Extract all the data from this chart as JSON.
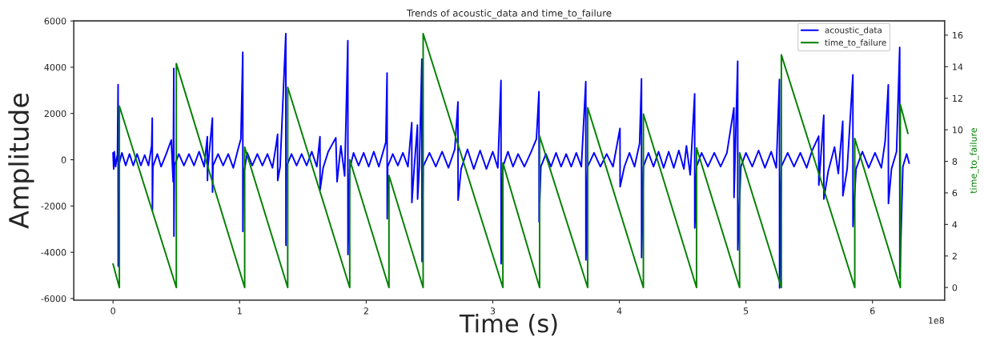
{
  "chart_data": {
    "type": "line",
    "title": "Trends of acoustic_data and time_to_failure",
    "xlabel": "Time (s)",
    "ylabel": "Amplitude",
    "y2label": "time_to_failure",
    "annotations": [
      "1e8"
    ],
    "xlim": [
      -0.31,
      6.57
    ],
    "xticks": [
      0,
      1,
      2,
      3,
      4,
      5,
      6
    ],
    "ylim": [
      -6070,
      6000
    ],
    "yticks": [
      -6000,
      -4000,
      -2000,
      0,
      2000,
      4000,
      6000
    ],
    "y2lim": [
      -0.8,
      16.9
    ],
    "y2ticks": [
      0,
      2,
      4,
      6,
      8,
      10,
      12,
      14,
      16
    ],
    "legend": "top right",
    "grid": false,
    "series": [
      {
        "name": "acoustic_data",
        "color": "#0000ff",
        "x": [
          0.0,
          0.005,
          0.01,
          0.02,
          0.035,
          0.04,
          0.041,
          0.045,
          0.07,
          0.1,
          0.13,
          0.16,
          0.19,
          0.22,
          0.25,
          0.28,
          0.305,
          0.31,
          0.311,
          0.315,
          0.35,
          0.38,
          0.42,
          0.46,
          0.475,
          0.48,
          0.481,
          0.485,
          0.52,
          0.56,
          0.6,
          0.64,
          0.68,
          0.72,
          0.745,
          0.746,
          0.75,
          0.785,
          0.786,
          0.79,
          0.83,
          0.87,
          0.91,
          0.95,
          0.99,
          1.01,
          1.025,
          1.026,
          1.03,
          1.06,
          1.1,
          1.14,
          1.18,
          1.22,
          1.26,
          1.29,
          1.3,
          1.301,
          1.32,
          1.365,
          1.366,
          1.37,
          1.41,
          1.45,
          1.49,
          1.53,
          1.57,
          1.61,
          1.635,
          1.636,
          1.66,
          1.7,
          1.76,
          1.77,
          1.8,
          1.83,
          1.855,
          1.856,
          1.87,
          1.9,
          1.94,
          1.98,
          2.02,
          2.06,
          2.1,
          2.155,
          2.165,
          2.166,
          2.17,
          2.21,
          2.25,
          2.29,
          2.33,
          2.36,
          2.361,
          2.38,
          2.405,
          2.406,
          2.42,
          2.44,
          2.441,
          2.45,
          2.5,
          2.55,
          2.6,
          2.65,
          2.7,
          2.725,
          2.726,
          2.75,
          2.8,
          2.85,
          2.9,
          2.95,
          3.0,
          3.04,
          3.065,
          3.066,
          3.08,
          3.12,
          3.16,
          3.2,
          3.25,
          3.3,
          3.345,
          3.365,
          3.366,
          3.38,
          3.42,
          3.46,
          3.5,
          3.54,
          3.58,
          3.62,
          3.66,
          3.7,
          3.735,
          3.736,
          3.75,
          3.8,
          3.85,
          3.9,
          3.95,
          4.005,
          4.006,
          4.04,
          4.08,
          4.12,
          4.16,
          4.175,
          4.176,
          4.19,
          4.23,
          4.27,
          4.31,
          4.35,
          4.39,
          4.43,
          4.47,
          4.51,
          4.53,
          4.56,
          4.595,
          4.596,
          4.61,
          4.65,
          4.7,
          4.75,
          4.8,
          4.85,
          4.905,
          4.906,
          4.935,
          4.936,
          4.96,
          5.0,
          5.05,
          5.1,
          5.15,
          5.2,
          5.24,
          5.265,
          5.266,
          5.28,
          5.33,
          5.38,
          5.43,
          5.48,
          5.52,
          5.575,
          5.576,
          5.615,
          5.616,
          5.65,
          5.7,
          5.73,
          5.765,
          5.766,
          5.8,
          5.845,
          5.846,
          5.87,
          5.92,
          5.97,
          6.02,
          6.07,
          6.1,
          6.125,
          6.126,
          6.15,
          6.19,
          6.215,
          6.216,
          6.24,
          6.27,
          6.29
        ],
        "values": [
          300,
          -400,
          350,
          -300,
          250,
          3250,
          -4600,
          -250,
          300,
          -250,
          250,
          -250,
          250,
          -250,
          200,
          -250,
          600,
          1800,
          -2200,
          -300,
          250,
          -300,
          250,
          850,
          -950,
          3950,
          -3300,
          -250,
          250,
          -250,
          250,
          -250,
          350,
          -300,
          1000,
          -900,
          -300,
          1800,
          -1400,
          -250,
          250,
          -250,
          250,
          -350,
          500,
          900,
          4650,
          -3100,
          -700,
          300,
          -250,
          250,
          -250,
          250,
          -350,
          700,
          1100,
          -900,
          -300,
          5450,
          -3700,
          -300,
          250,
          -250,
          250,
          -250,
          350,
          -300,
          1000,
          -1300,
          -350,
          350,
          950,
          -950,
          600,
          -700,
          5150,
          -4100,
          -400,
          300,
          -250,
          300,
          -300,
          350,
          -300,
          750,
          3750,
          -2550,
          -300,
          250,
          -250,
          300,
          -300,
          1600,
          -1850,
          -300,
          1500,
          -1700,
          -300,
          4350,
          -4400,
          -300,
          300,
          -300,
          350,
          -350,
          450,
          2500,
          -1750,
          -400,
          450,
          -400,
          400,
          -400,
          350,
          -350,
          3430,
          -4500,
          -300,
          350,
          -300,
          250,
          -300,
          300,
          900,
          2940,
          -2690,
          -300,
          250,
          -300,
          300,
          -300,
          250,
          -300,
          300,
          -300,
          3380,
          -4330,
          -300,
          300,
          -300,
          250,
          -300,
          1350,
          -1170,
          -300,
          300,
          -300,
          700,
          3500,
          -4230,
          -300,
          300,
          -300,
          350,
          -350,
          350,
          -350,
          400,
          -400,
          600,
          -650,
          2850,
          -2950,
          -300,
          300,
          -300,
          300,
          -300,
          300,
          2240,
          -1630,
          4260,
          -3900,
          -300,
          300,
          -300,
          400,
          -350,
          350,
          -350,
          3470,
          -5540,
          -300,
          300,
          -300,
          300,
          -350,
          350,
          1020,
          -1100,
          1920,
          -1700,
          -500,
          550,
          -600,
          1660,
          -1560,
          -400,
          3670,
          -2890,
          -400,
          350,
          -350,
          300,
          -350,
          800,
          3240,
          -1890,
          -400,
          350,
          4860,
          -5110,
          -300,
          250,
          -150
        ]
      },
      {
        "name": "time_to_failure",
        "color": "#008000",
        "axis": "y2",
        "x": [
          0.0,
          0.05,
          0.05,
          0.5,
          0.5,
          1.04,
          1.04,
          1.38,
          1.38,
          1.87,
          1.87,
          2.18,
          2.18,
          2.45,
          2.45,
          3.08,
          3.08,
          3.37,
          3.37,
          3.75,
          3.75,
          4.19,
          4.19,
          4.61,
          4.61,
          4.95,
          4.95,
          5.28,
          5.28,
          5.86,
          5.86,
          6.22,
          6.22,
          6.28
        ],
        "values": [
          1.5,
          0,
          11.5,
          0,
          14.2,
          0,
          8.9,
          0,
          12.7,
          0,
          8.1,
          0,
          7.1,
          0,
          16.1,
          0,
          7.9,
          0,
          9.6,
          0,
          11.4,
          0,
          11.0,
          0,
          8.85,
          0,
          8.55,
          0,
          14.75,
          0,
          9.45,
          0,
          11.6,
          9.77
        ]
      }
    ]
  }
}
